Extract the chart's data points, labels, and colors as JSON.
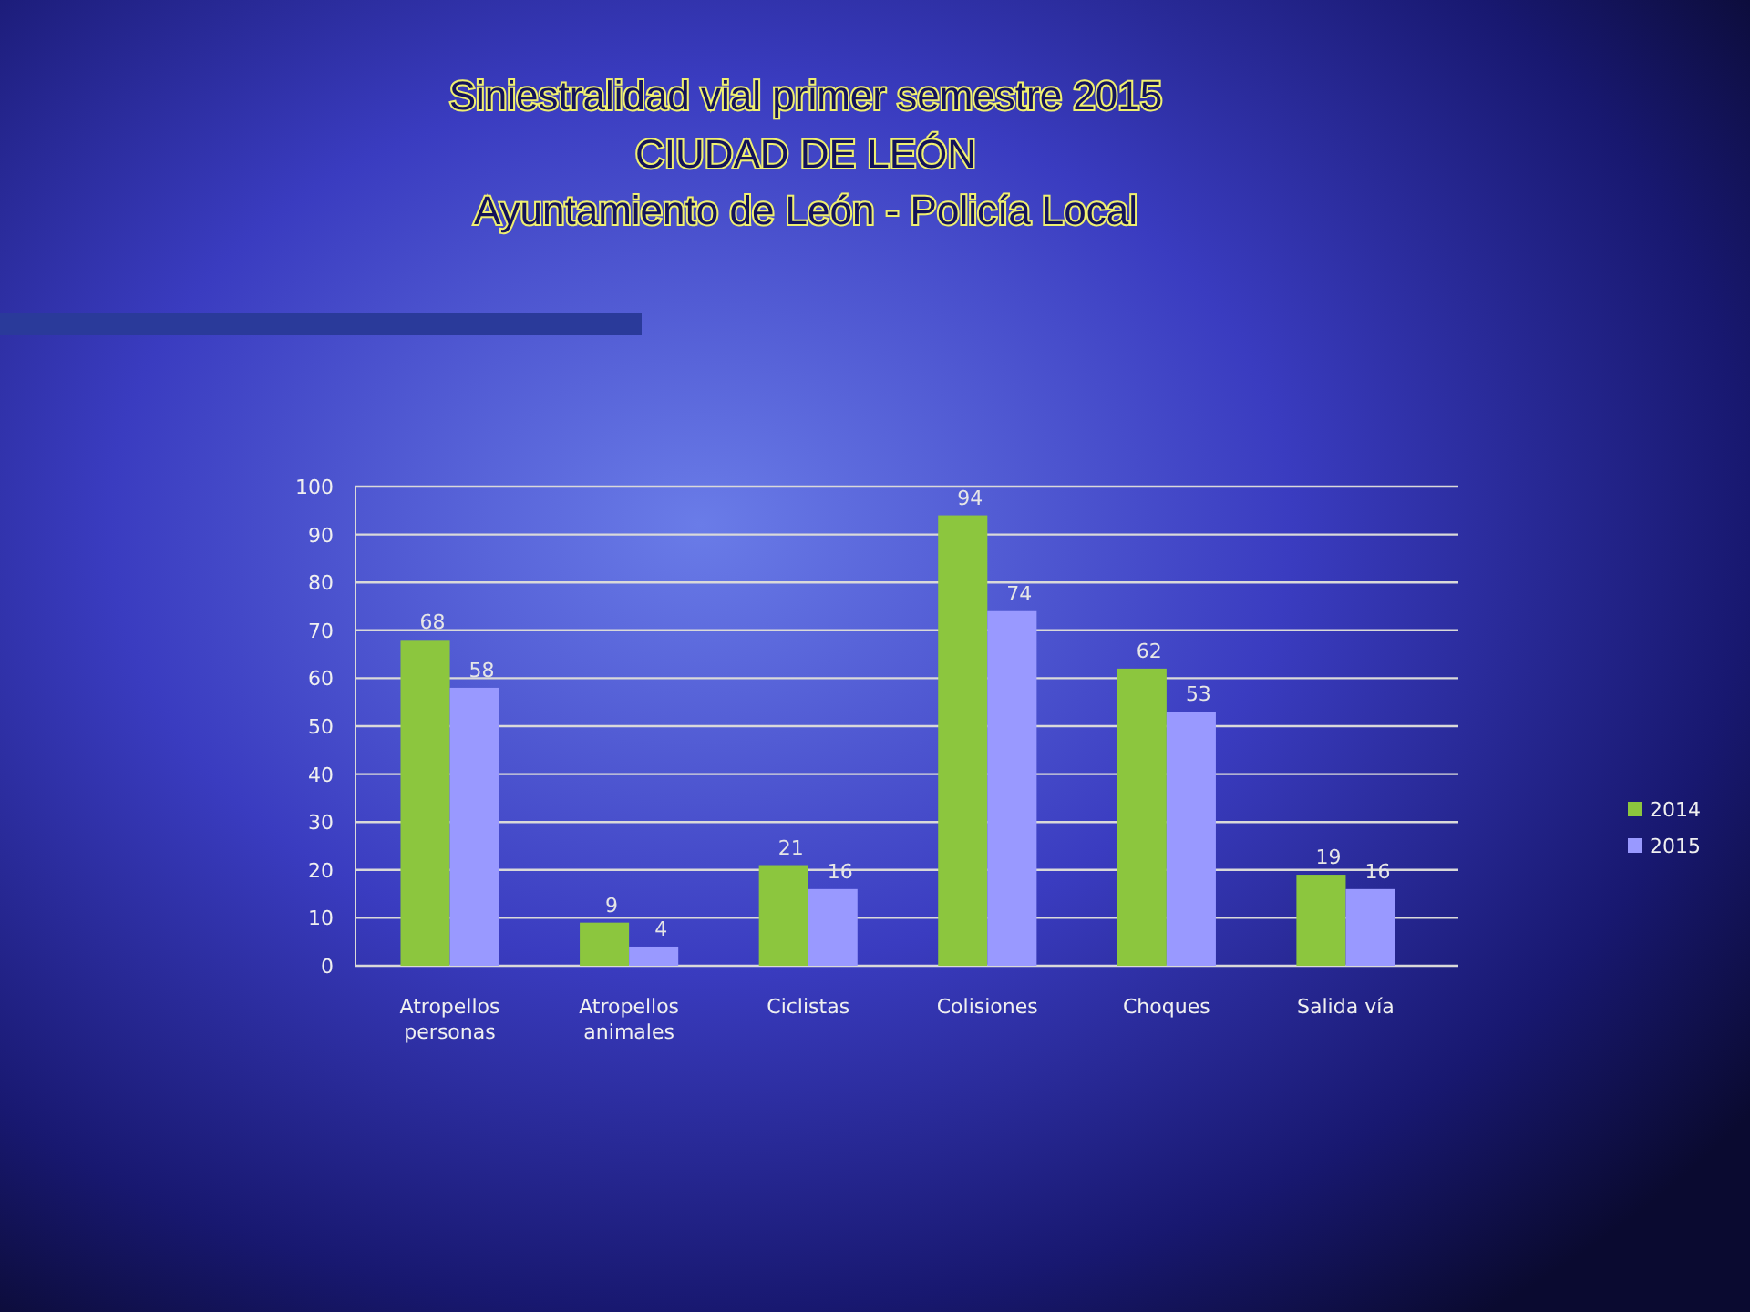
{
  "chart_data": {
    "type": "bar",
    "title": "Siniestralidad vial primer semestre 2015",
    "subtitle": "CIUDAD DE LEÓN\nAyuntamiento de León - Policía Local",
    "categories": [
      "Atropellos personas",
      "Atropellos animales",
      "Ciclistas",
      "Colisiones",
      "Choques",
      "Salida vía"
    ],
    "series": [
      {
        "name": "2014",
        "color": "#8cc63e",
        "values": [
          68,
          9,
          21,
          94,
          62,
          19
        ]
      },
      {
        "name": "2015",
        "color": "#9999ff",
        "values": [
          58,
          4,
          16,
          74,
          53,
          16
        ]
      }
    ],
    "ylim": [
      0,
      100
    ],
    "yticks": [
      0,
      10,
      20,
      30,
      40,
      50,
      60,
      70,
      80,
      90,
      100
    ],
    "grid": "y",
    "legend": "right",
    "data_labels": true
  }
}
